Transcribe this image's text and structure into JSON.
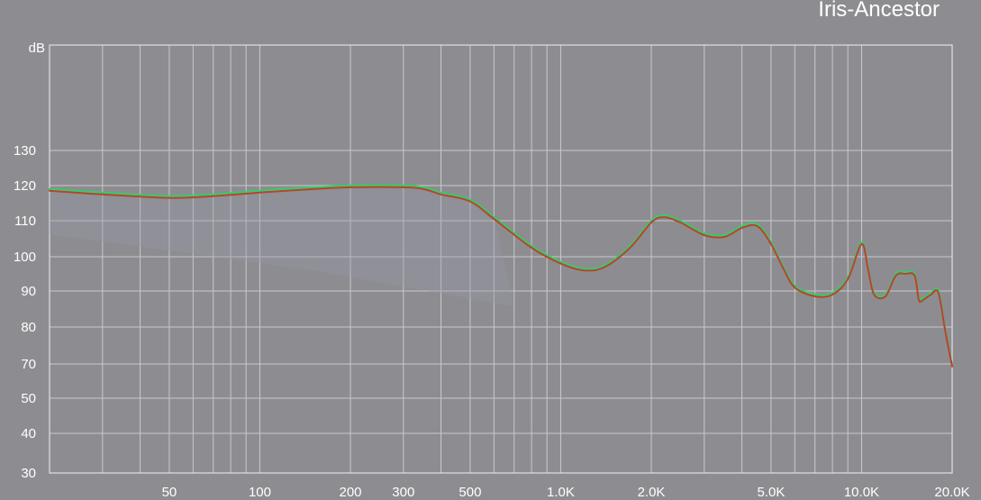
{
  "chart_data": {
    "type": "line",
    "title": "Iris-Ancestor",
    "ylabel": "dB",
    "xlabel": "",
    "xscale": "log",
    "xlim": [
      20,
      20000
    ],
    "x_ticks": [
      {
        "value": 50,
        "label": "50"
      },
      {
        "value": 100,
        "label": "100"
      },
      {
        "value": 200,
        "label": "200"
      },
      {
        "value": 300,
        "label": "300"
      },
      {
        "value": 500,
        "label": "500"
      },
      {
        "value": 1000,
        "label": "1.0K"
      },
      {
        "value": 2000,
        "label": "2.0K"
      },
      {
        "value": 5000,
        "label": "5.0K"
      },
      {
        "value": 10000,
        "label": "10.0K"
      },
      {
        "value": 20000,
        "label": "20.0K"
      }
    ],
    "y_ticks": [
      "30",
      "40",
      "50",
      "70",
      "80",
      "90",
      "100",
      "110",
      "120",
      "130"
    ],
    "grid": true,
    "series": [
      {
        "color": "#2fd06a",
        "x": [
          20,
          30,
          50,
          70,
          100,
          150,
          200,
          300,
          350,
          400,
          500,
          600,
          800,
          1000,
          1200,
          1400,
          1700,
          2000,
          2200,
          2500,
          3000,
          3500,
          4000,
          4500,
          5000,
          5500,
          6000,
          7000,
          8000,
          9000,
          10000,
          10500,
          11000,
          12000,
          13000,
          14000,
          15000,
          15500,
          16000,
          17000,
          18000,
          19000,
          20000
        ],
        "y": [
          119,
          118,
          117,
          117.5,
          118.5,
          119.5,
          120,
          120,
          119.5,
          118,
          116,
          111,
          103,
          98.5,
          96.5,
          97.5,
          103,
          110,
          111.5,
          110,
          106.5,
          106,
          108.5,
          109,
          104,
          97,
          91.5,
          89,
          89.5,
          94,
          104,
          97,
          89.5,
          89,
          95,
          95.5,
          95,
          88,
          88,
          89.5,
          90,
          79,
          69
        ]
      },
      {
        "color": "#b8452a",
        "x": [
          20,
          30,
          50,
          70,
          100,
          150,
          200,
          300,
          350,
          400,
          500,
          600,
          800,
          1000,
          1200,
          1400,
          1700,
          2000,
          2200,
          2500,
          3000,
          3500,
          4000,
          4500,
          5000,
          5500,
          6000,
          7000,
          8000,
          9000,
          10000,
          10500,
          11000,
          12000,
          13000,
          14000,
          15000,
          15500,
          16000,
          17000,
          18000,
          19000,
          20000
        ],
        "y": [
          118.5,
          117.5,
          116.5,
          117,
          118,
          119,
          119.5,
          119.5,
          119,
          117.5,
          115.5,
          110.5,
          102.5,
          98,
          96,
          97,
          102.5,
          109.5,
          111,
          109.5,
          106,
          105.5,
          108,
          108.5,
          103.5,
          96.5,
          91,
          88.5,
          89,
          93.5,
          103.5,
          96.5,
          89,
          88.5,
          94.5,
          95,
          94.5,
          87.5,
          87.5,
          89,
          89.5,
          78.5,
          68.5
        ]
      }
    ]
  }
}
